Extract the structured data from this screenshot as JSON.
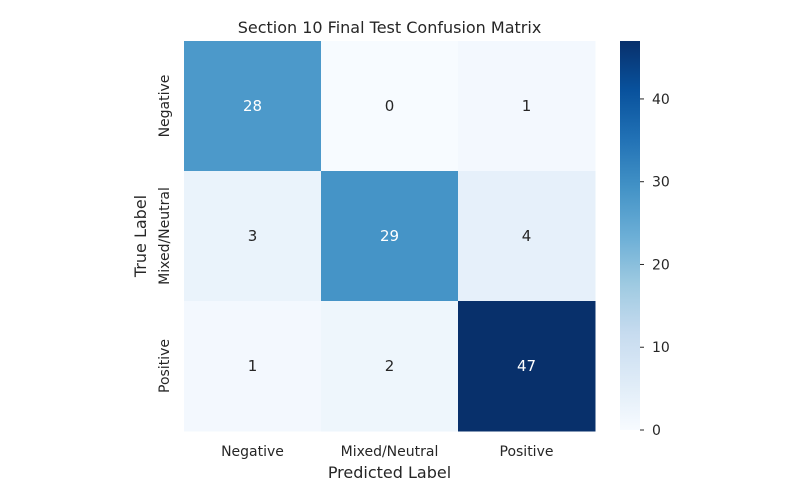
{
  "chart_data": {
    "type": "heatmap",
    "title": "Section 10 Final Test Confusion Matrix",
    "xlabel": "Predicted Label",
    "ylabel": "True Label",
    "x_categories": [
      "Negative",
      "Mixed/Neutral",
      "Positive"
    ],
    "y_categories": [
      "Negative",
      "Mixed/Neutral",
      "Positive"
    ],
    "values": [
      [
        28,
        0,
        1
      ],
      [
        3,
        29,
        4
      ],
      [
        1,
        2,
        47
      ]
    ],
    "colormap": "Blues",
    "color_range": [
      0,
      47
    ],
    "colorbar_ticks": [
      0,
      10,
      20,
      30,
      40
    ],
    "colors": {
      "low": "#f7fbff",
      "high": "#08306b",
      "text_dark": "#262626",
      "text_light": "#ffffff"
    },
    "grid": false,
    "legend": "colorbar-right"
  }
}
